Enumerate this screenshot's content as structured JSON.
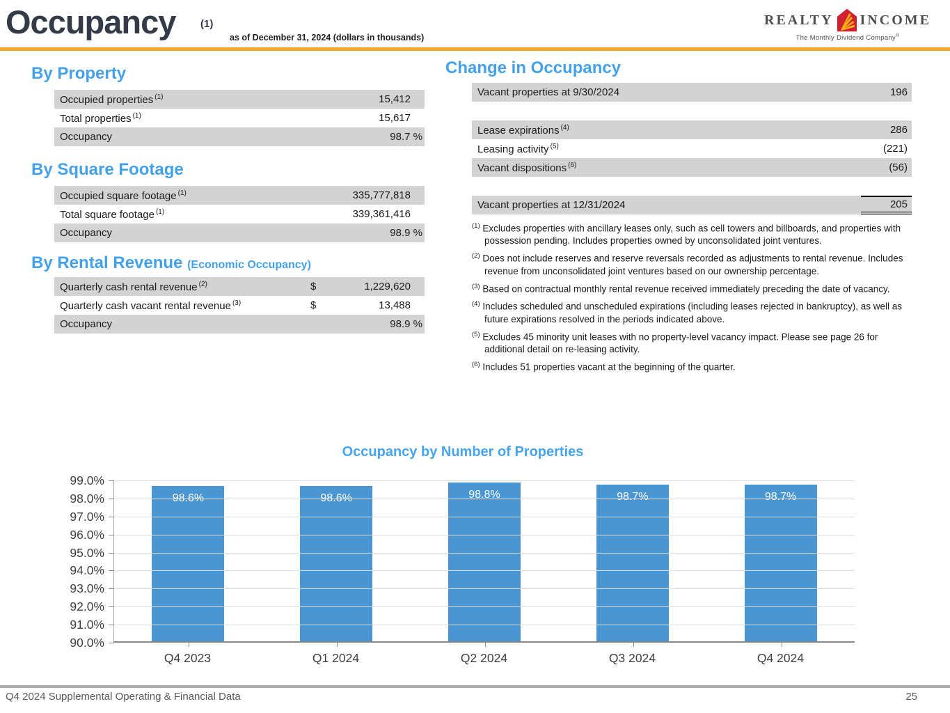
{
  "header": {
    "title": "Occupancy",
    "title_footnote": "(1)",
    "subtitle": "as of December 31, 2024 (dollars in thousands)",
    "logo": {
      "word_left": "REALTY",
      "word_right": "INCOME",
      "tagline": "The Monthly Dividend Company",
      "tagline_mark": "®"
    }
  },
  "sections": {
    "by_property": {
      "heading": "By Property",
      "rows": [
        {
          "label": "Occupied properties",
          "sup": "(1)",
          "value": "15,412"
        },
        {
          "label": "Total properties",
          "sup": "(1)",
          "value": "15,617"
        },
        {
          "label": "Occupancy",
          "sup": "",
          "value": "98.7 %"
        }
      ]
    },
    "by_square_footage": {
      "heading": "By Square Footage",
      "rows": [
        {
          "label": "Occupied square footage",
          "sup": "(1)",
          "value": "335,777,818"
        },
        {
          "label": "Total square footage",
          "sup": "(1)",
          "value": "339,361,416"
        },
        {
          "label": "Occupancy",
          "sup": "",
          "value": "98.9 %"
        }
      ]
    },
    "by_rental_revenue": {
      "heading": "By Rental Revenue",
      "heading_suffix": "(Economic Occupancy)",
      "rows": [
        {
          "label": "Quarterly cash rental revenue",
          "sup": "(2)",
          "currency": "$",
          "value": "1,229,620"
        },
        {
          "label": "Quarterly cash vacant rental revenue",
          "sup": "(3)",
          "currency": "$",
          "value": "13,488"
        },
        {
          "label": "Occupancy",
          "sup": "",
          "currency": "",
          "value": "98.9 %"
        }
      ]
    },
    "change_in_occupancy": {
      "heading": "Change in Occupancy",
      "rows": [
        {
          "label": "Vacant properties at 9/30/2024",
          "sup": "",
          "value": "196"
        },
        {
          "label": "Lease expirations",
          "sup": "(4)",
          "value": "286"
        },
        {
          "label": "Leasing activity",
          "sup": "(5)",
          "value": "(221)"
        },
        {
          "label": "Vacant dispositions",
          "sup": "(6)",
          "value": "(56)"
        },
        {
          "label": "Vacant properties at 12/31/2024",
          "sup": "",
          "value": "205"
        }
      ]
    }
  },
  "footnotes": [
    {
      "marker": "(1)",
      "text": "Excludes properties with ancillary leases only, such as cell towers and billboards, and properties with possession pending. Includes properties owned by unconsolidated joint ventures."
    },
    {
      "marker": "(2)",
      "text": "Does not include reserves and reserve reversals recorded as adjustments to rental revenue. Includes revenue from unconsolidated joint ventures based on our ownership percentage."
    },
    {
      "marker": "(3)",
      "text": "Based on contractual monthly rental revenue received immediately preceding the date of vacancy."
    },
    {
      "marker": "(4)",
      "text": "Includes scheduled and unscheduled expirations (including leases rejected in bankruptcy), as well as future expirations resolved in the periods indicated above."
    },
    {
      "marker": "(5)",
      "text": "Excludes 45 minority unit leases with no property-level vacancy impact. Please see page 26 for additional detail on re-leasing activity."
    },
    {
      "marker": "(6)",
      "text": "Includes 51 properties vacant at the beginning of the quarter."
    }
  ],
  "chart_data": {
    "type": "bar",
    "title": "Occupancy by Number of Properties",
    "categories": [
      "Q4 2023",
      "Q1 2024",
      "Q2 2024",
      "Q3 2024",
      "Q4 2024"
    ],
    "values": [
      98.6,
      98.6,
      98.8,
      98.7,
      98.7
    ],
    "value_labels": [
      "98.6%",
      "98.6%",
      "98.8%",
      "98.7%",
      "98.7%"
    ],
    "ylim": [
      90.0,
      99.0
    ],
    "ytick_step": 1.0,
    "ytick_labels": [
      "99.0%",
      "98.0%",
      "97.0%",
      "96.0%",
      "95.0%",
      "94.0%",
      "93.0%",
      "92.0%",
      "91.0%",
      "90.0%"
    ],
    "xlabel": "",
    "ylabel": "",
    "grid": true,
    "legend": "none",
    "bar_color": "#4a96d2"
  },
  "colors": {
    "accent_blue": "#44a1e8",
    "title_dark": "#333b47",
    "orange_rule": "#f4a52b",
    "row_gray": "#d3d3d3",
    "bar_blue": "#4a96d2",
    "logo_red": "#d1202f",
    "logo_orange": "#f9a51a"
  },
  "footer": {
    "left_text": "Q4 2024 Supplemental Operating & Financial Data",
    "page_number": "25"
  }
}
